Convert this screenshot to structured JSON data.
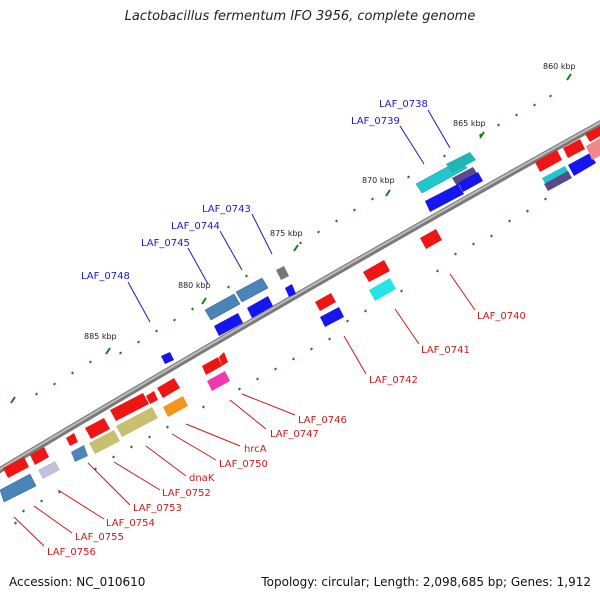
{
  "title": "Lactobacillus fermentum IFO 3956, complete genome",
  "footer": {
    "accession": "Accession: NC_010610",
    "summary": "Topology: circular; Length: 2,098,685 bp; Genes: 1,912"
  },
  "colors": {
    "backbone": "#888888",
    "tick": "#1a7a1a",
    "label_upper": "#1a1acc",
    "label_lower": "#cc1a1a"
  },
  "kbp_labels": [
    {
      "id": "860",
      "text": "860 kbp"
    },
    {
      "id": "865",
      "text": "865 kbp"
    },
    {
      "id": "870",
      "text": "870 kbp"
    },
    {
      "id": "875",
      "text": "875 kbp"
    },
    {
      "id": "880",
      "text": "880 kbp"
    },
    {
      "id": "885",
      "text": "885 kbp"
    }
  ],
  "upper_labels": [
    {
      "id": "LAF_0738",
      "text": "LAF_0738"
    },
    {
      "id": "LAF_0739",
      "text": "LAF_0739"
    },
    {
      "id": "LAF_0743",
      "text": "LAF_0743"
    },
    {
      "id": "LAF_0744",
      "text": "LAF_0744"
    },
    {
      "id": "LAF_0745",
      "text": "LAF_0745"
    },
    {
      "id": "LAF_0748",
      "text": "LAF_0748"
    }
  ],
  "lower_labels": [
    {
      "id": "LAF_0740",
      "text": "LAF_0740"
    },
    {
      "id": "LAF_0741",
      "text": "LAF_0741"
    },
    {
      "id": "LAF_0742",
      "text": "LAF_0742"
    },
    {
      "id": "LAF_0746",
      "text": "LAF_0746"
    },
    {
      "id": "LAF_0747",
      "text": "LAF_0747"
    },
    {
      "id": "hrcA",
      "text": "hrcA"
    },
    {
      "id": "LAF_0750",
      "text": "LAF_0750"
    },
    {
      "id": "dnaK",
      "text": "dnaK"
    },
    {
      "id": "LAF_0752",
      "text": "LAF_0752"
    },
    {
      "id": "LAF_0753",
      "text": "LAF_0753"
    },
    {
      "id": "LAF_0754",
      "text": "LAF_0754"
    },
    {
      "id": "LAF_0755",
      "text": "LAF_0755"
    },
    {
      "id": "LAF_0756",
      "text": "LAF_0756"
    }
  ]
}
